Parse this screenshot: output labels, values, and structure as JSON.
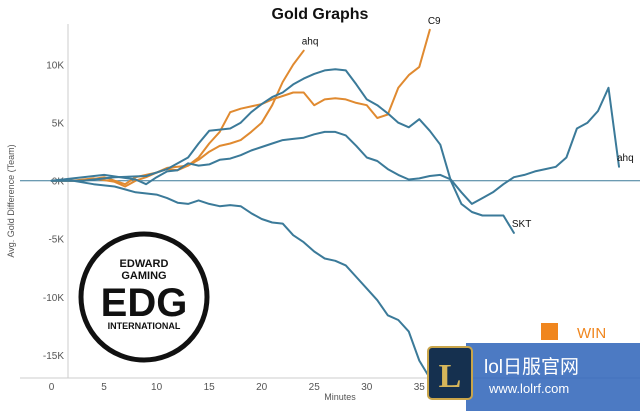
{
  "chart_data": {
    "type": "line",
    "title": "Gold Graphs",
    "xlabel": "Minutes",
    "ylabel": "Avg. Gold Difference (Team)",
    "xlim": [
      -3,
      56
    ],
    "ylim": [
      -17000,
      13500
    ],
    "grid": false,
    "x_ticks": [
      "0",
      "5",
      "10",
      "15",
      "20",
      "25",
      "30",
      "35"
    ],
    "y_ticks": [
      "10K",
      "5K",
      "0K",
      "-5K",
      "-10K",
      "-15K"
    ],
    "series": [
      {
        "name": "ahq",
        "color": "#e08a30",
        "x": [
          0,
          2,
          4,
          6,
          7,
          8,
          9,
          10,
          11,
          12,
          13,
          14,
          15,
          16,
          17,
          18,
          19,
          20,
          21,
          22,
          23,
          24
        ],
        "y": [
          0,
          0,
          200,
          -100,
          -500,
          0,
          300,
          700,
          1000,
          900,
          1300,
          1800,
          2500,
          3000,
          3200,
          3500,
          4200,
          5000,
          6500,
          8500,
          10000,
          11200
        ]
      },
      {
        "name": "C9",
        "color": "#e08a30",
        "x": [
          0,
          3,
          5,
          7,
          8,
          9,
          10,
          11,
          12,
          13,
          14,
          15,
          16,
          17,
          18,
          19,
          20,
          21,
          22,
          23,
          24,
          25,
          26,
          27,
          28,
          29,
          30,
          31,
          32,
          33,
          34,
          35,
          36
        ],
        "y": [
          0,
          0,
          300,
          -300,
          300,
          500,
          700,
          1100,
          1200,
          1300,
          2000,
          3200,
          4200,
          5900,
          6200,
          6400,
          6600,
          7000,
          7300,
          7600,
          7600,
          6500,
          7000,
          7100,
          7000,
          6700,
          6500,
          5400,
          5700,
          8000,
          9100,
          9800,
          13000
        ]
      },
      {
        "name": "SKT",
        "color": "#3b7a99",
        "x": [
          0,
          2,
          4,
          6,
          8,
          10,
          11,
          12,
          13,
          14,
          15,
          16,
          17,
          18,
          19,
          20,
          21,
          22,
          23,
          24,
          25,
          26,
          27,
          28,
          29,
          30,
          31,
          32,
          33,
          34,
          35,
          36,
          37,
          38
        ],
        "y": [
          0,
          0,
          -300,
          -500,
          -1000,
          -1200,
          -1500,
          -1900,
          -2000,
          -1700,
          -2000,
          -2200,
          -2100,
          -2200,
          -2800,
          -3300,
          -3600,
          -3700,
          -4700,
          -5300,
          -6100,
          -6700,
          -6900,
          -7300,
          -8300,
          -9300,
          -10300,
          -11600,
          -12000,
          -13000,
          -15500,
          -17000,
          -15800,
          -17000
        ]
      },
      {
        "name": "ahq",
        "color": "#3b7a99",
        "x": [
          0,
          5,
          8,
          9,
          10,
          11,
          12,
          13,
          14,
          15,
          16,
          17,
          18,
          19,
          20,
          21,
          22,
          23,
          24,
          25,
          26,
          27,
          28,
          29,
          30,
          31,
          32,
          33,
          34,
          35,
          36,
          37,
          38,
          39,
          40,
          41,
          42,
          43,
          44,
          45,
          46,
          47,
          48,
          49,
          50,
          51,
          52,
          53,
          54
        ],
        "y": [
          0,
          500,
          100,
          -300,
          300,
          800,
          900,
          1500,
          1300,
          1400,
          1800,
          1900,
          2200,
          2600,
          2900,
          3200,
          3500,
          3600,
          3700,
          4000,
          4200,
          4200,
          3900,
          3000,
          2000,
          1700,
          1000,
          500,
          100,
          200,
          400,
          500,
          100,
          -1000,
          -2000,
          -1500,
          -1000,
          -300,
          300,
          500,
          800,
          1000,
          1200,
          2000,
          4500,
          5000,
          6000,
          8000,
          1200
        ]
      },
      {
        "name": "SKT",
        "color": "#3b7a99",
        "x": [
          0,
          3,
          6,
          9,
          11,
          13,
          14,
          15,
          16,
          17,
          18,
          19,
          20,
          21,
          22,
          23,
          24,
          25,
          26,
          27,
          28,
          29,
          30,
          31,
          32,
          33,
          34,
          35,
          36,
          37,
          38,
          39,
          40,
          41,
          42,
          43,
          44
        ],
        "y": [
          0,
          0,
          300,
          400,
          1000,
          2000,
          3200,
          4300,
          4400,
          4500,
          5000,
          5900,
          6600,
          7200,
          7600,
          8300,
          8800,
          9200,
          9500,
          9600,
          9500,
          8300,
          7000,
          6500,
          5800,
          5000,
          4600,
          5300,
          4300,
          3100,
          0,
          -2000,
          -2700,
          -3000,
          -3000,
          -3000,
          -4500
        ]
      }
    ],
    "series_labels": [
      {
        "text": "ahq",
        "at_x": 24,
        "at_y": 11200,
        "color": "#111111"
      },
      {
        "text": "C9",
        "at_x": 36,
        "at_y": 13000,
        "color": "#111111"
      },
      {
        "text": "SKT",
        "at_x": 38,
        "at_y": -17000,
        "color": "#111111"
      },
      {
        "text": "ahq",
        "at_x": 54,
        "at_y": 1200,
        "color": "#111111"
      },
      {
        "text": "SKT",
        "at_x": 44,
        "at_y": -4500,
        "color": "#111111"
      }
    ]
  },
  "overlay": {
    "edg_logo": {
      "top": "EDWARD",
      "middle": "GAMING",
      "mark": "EDG",
      "bottom": "INTERNATIONAL"
    },
    "win_legend": {
      "label": "WIN",
      "color": "#f0861e"
    },
    "watermark": {
      "site": "lol日服官网",
      "url": "www.lolrf.com",
      "mark": "L"
    }
  }
}
